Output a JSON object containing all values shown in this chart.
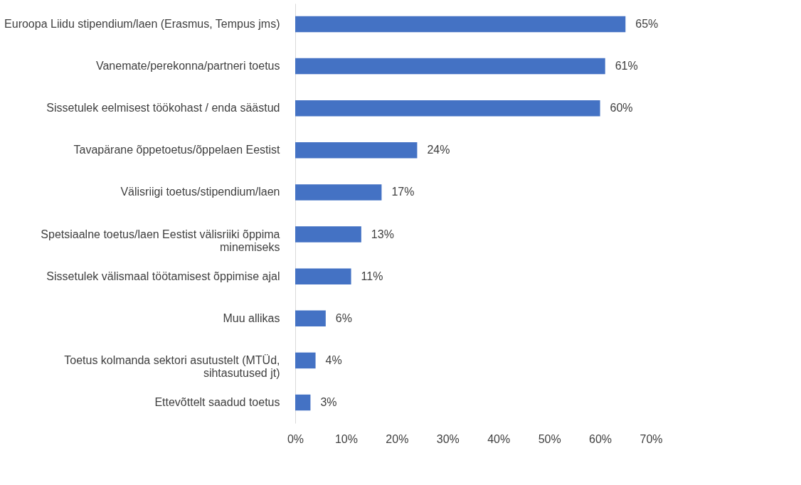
{
  "chart_data": {
    "type": "bar",
    "orientation": "horizontal",
    "color": "#4472c4",
    "categories": [
      "Euroopa Liidu stipendium/laen (Erasmus, Tempus jms)",
      "Vanemate/perekonna/partneri toetus",
      "Sissetulek eelmisest töökohast / enda säästud",
      "Tavapärane õppetoetus/õppelaen Eestist",
      "Välisriigi toetus/stipendium/laen",
      "Spetsiaalne toetus/laen Eestist välisriiki õppima minemiseks",
      "Sissetulek välismaal töötamisest õppimise ajal",
      "Muu allikas",
      "Toetus kolmanda sektori asutustelt (MTÜd, sihtasutused jt)",
      "Ettevõttelt saadud toetus"
    ],
    "values": [
      65,
      61,
      60,
      24,
      17,
      13,
      11,
      6,
      4,
      3
    ],
    "value_labels": [
      "65%",
      "61%",
      "60%",
      "24%",
      "17%",
      "13%",
      "11%",
      "6%",
      "4%",
      "3%"
    ],
    "xlim": [
      0,
      70
    ],
    "xticks": [
      {
        "value": 0,
        "label": "0%"
      },
      {
        "value": 10,
        "label": "10%"
      },
      {
        "value": 20,
        "label": "20%"
      },
      {
        "value": 30,
        "label": "30%"
      },
      {
        "value": 40,
        "label": "40%"
      },
      {
        "value": 50,
        "label": "50%"
      },
      {
        "value": 60,
        "label": "60%"
      },
      {
        "value": 70,
        "label": "70%"
      }
    ],
    "grid": false
  }
}
